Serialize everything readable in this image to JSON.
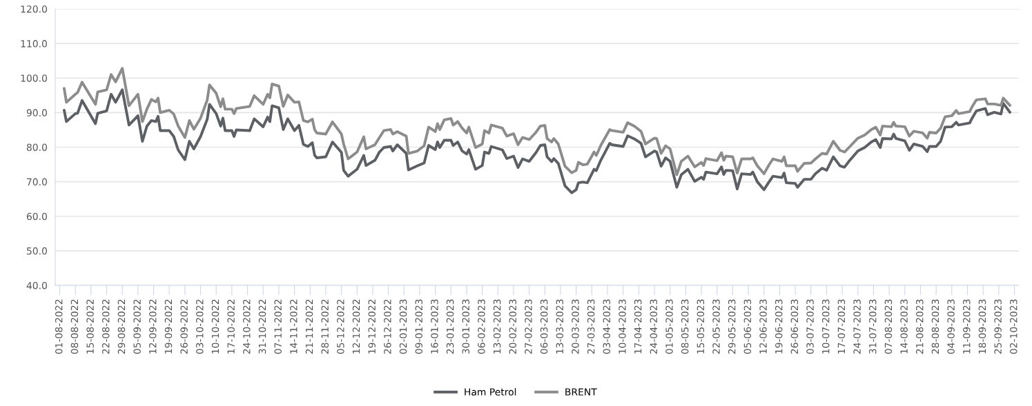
{
  "chart_data": {
    "type": "line",
    "x": [
      "2022-08-03",
      "2022-08-04",
      "2022-08-08",
      "2022-08-09",
      "2022-08-11",
      "2022-08-17",
      "2022-08-18",
      "2022-08-22",
      "2022-08-24",
      "2022-08-26",
      "2022-08-29",
      "2022-09-01",
      "2022-09-05",
      "2022-09-07",
      "2022-09-09",
      "2022-09-11",
      "2022-09-13",
      "2022-09-14",
      "2022-09-15",
      "2022-09-19",
      "2022-09-21",
      "2022-09-23",
      "2022-09-26",
      "2022-09-28",
      "2022-09-30",
      "2022-10-03",
      "2022-10-06",
      "2022-10-07",
      "2022-10-10",
      "2022-10-12",
      "2022-10-13",
      "2022-10-14",
      "2022-10-17",
      "2022-10-18",
      "2022-10-19",
      "2022-10-25",
      "2022-10-27",
      "2022-10-31",
      "2022-11-02",
      "2022-11-03",
      "2022-11-04",
      "2022-11-07",
      "2022-11-09",
      "2022-11-11",
      "2022-11-14",
      "2022-11-16",
      "2022-11-18",
      "2022-11-20",
      "2022-11-22",
      "2022-11-23",
      "2022-11-24",
      "2022-11-28",
      "2022-12-01",
      "2022-12-05",
      "2022-12-06",
      "2022-12-08",
      "2022-12-12",
      "2022-12-15",
      "2022-12-16",
      "2022-12-20",
      "2022-12-22",
      "2022-12-24",
      "2022-12-27",
      "2022-12-28",
      "2022-12-30",
      "2023-01-03",
      "2023-01-04",
      "2023-01-08",
      "2023-01-11",
      "2023-01-13",
      "2023-01-16",
      "2023-01-17",
      "2023-01-18",
      "2023-01-20",
      "2023-01-23",
      "2023-01-24",
      "2023-01-26",
      "2023-01-28",
      "2023-01-30",
      "2023-01-31",
      "2023-02-03",
      "2023-02-06",
      "2023-02-07",
      "2023-02-09",
      "2023-02-10",
      "2023-02-15",
      "2023-02-17",
      "2023-02-20",
      "2023-02-22",
      "2023-02-24",
      "2023-02-27",
      "2023-03-02",
      "2023-03-04",
      "2023-03-06",
      "2023-03-07",
      "2023-03-09",
      "2023-03-10",
      "2023-03-12",
      "2023-03-15",
      "2023-03-18",
      "2023-03-20",
      "2023-03-21",
      "2023-03-23",
      "2023-03-25",
      "2023-03-28",
      "2023-03-29",
      "2023-03-31",
      "2023-04-04",
      "2023-04-05",
      "2023-04-10",
      "2023-04-12",
      "2023-04-15",
      "2023-04-18",
      "2023-04-20",
      "2023-04-24",
      "2023-04-25",
      "2023-04-27",
      "2023-04-29",
      "2023-05-01",
      "2023-05-04",
      "2023-05-06",
      "2023-05-09",
      "2023-05-12",
      "2023-05-15",
      "2023-05-16",
      "2023-05-17",
      "2023-05-22",
      "2023-05-24",
      "2023-05-25",
      "2023-05-26",
      "2023-05-29",
      "2023-05-31",
      "2023-06-02",
      "2023-06-06",
      "2023-06-07",
      "2023-06-09",
      "2023-06-12",
      "2023-06-14",
      "2023-06-16",
      "2023-06-20",
      "2023-06-21",
      "2023-06-22",
      "2023-06-26",
      "2023-06-27",
      "2023-06-30",
      "2023-07-03",
      "2023-07-05",
      "2023-07-08",
      "2023-07-10",
      "2023-07-13",
      "2023-07-16",
      "2023-07-18",
      "2023-07-20",
      "2023-07-24",
      "2023-07-27",
      "2023-07-30",
      "2023-08-01",
      "2023-08-03",
      "2023-08-04",
      "2023-08-08",
      "2023-08-09",
      "2023-08-10",
      "2023-08-14",
      "2023-08-16",
      "2023-08-18",
      "2023-08-22",
      "2023-08-24",
      "2023-08-25",
      "2023-08-28",
      "2023-08-30",
      "2023-09-01",
      "2023-09-04",
      "2023-09-06",
      "2023-09-07",
      "2023-09-12",
      "2023-09-13",
      "2023-09-15",
      "2023-09-19",
      "2023-09-20",
      "2023-09-23",
      "2023-09-26",
      "2023-09-27",
      "2023-09-30"
    ],
    "series": [
      {
        "name": "Ham Petrol",
        "color": "#5c5f63",
        "values": [
          90.7,
          87.4,
          89.7,
          89.8,
          93.5,
          86.8,
          89.8,
          90.5,
          95.3,
          93.0,
          96.6,
          86.4,
          89.1,
          81.7,
          86.1,
          87.7,
          87.4,
          88.9,
          84.8,
          84.8,
          83.1,
          79.2,
          76.4,
          81.7,
          79.5,
          83.1,
          88.1,
          92.4,
          89.7,
          86.1,
          88.4,
          84.8,
          84.8,
          83.1,
          85.0,
          84.8,
          88.2,
          85.9,
          88.7,
          87.4,
          92.0,
          91.4,
          85.1,
          88.2,
          84.8,
          86.3,
          80.8,
          80.2,
          81.3,
          77.7,
          76.9,
          77.2,
          81.5,
          78.5,
          73.3,
          71.6,
          73.6,
          77.6,
          74.7,
          76.2,
          78.6,
          79.9,
          80.2,
          78.9,
          80.7,
          78.2,
          73.4,
          74.6,
          75.4,
          80.5,
          79.3,
          81.5,
          79.9,
          82.0,
          82.0,
          80.5,
          81.5,
          78.9,
          78.0,
          79.3,
          73.6,
          74.7,
          78.6,
          78.2,
          80.2,
          79.2,
          76.7,
          77.4,
          74.1,
          76.6,
          75.9,
          78.4,
          80.5,
          80.7,
          77.2,
          75.8,
          76.7,
          75.3,
          68.8,
          66.8,
          67.7,
          69.7,
          69.9,
          69.7,
          73.6,
          73.2,
          76.2,
          81.1,
          80.7,
          80.2,
          83.3,
          82.4,
          81.1,
          77.2,
          78.9,
          78.6,
          74.5,
          76.9,
          75.9,
          68.4,
          72.0,
          73.6,
          70.1,
          71.3,
          70.7,
          72.8,
          72.3,
          74.3,
          72.1,
          73.3,
          73.2,
          67.9,
          72.3,
          72.1,
          72.8,
          70.0,
          67.7,
          69.7,
          71.6,
          71.2,
          72.5,
          69.7,
          69.5,
          68.4,
          70.7,
          70.7,
          72.3,
          73.9,
          73.3,
          77.2,
          74.6,
          74.2,
          75.9,
          78.9,
          79.9,
          81.5,
          82.2,
          79.9,
          82.5,
          82.4,
          83.8,
          82.5,
          81.8,
          79.1,
          80.9,
          80.2,
          78.7,
          80.2,
          80.2,
          81.7,
          85.8,
          85.9,
          87.2,
          86.4,
          87.0,
          88.3,
          90.5,
          91.2,
          89.4,
          90.1,
          89.6,
          92.7,
          90.1
        ]
      },
      {
        "name": "BRENT",
        "color": "#8c8c8c",
        "values": [
          97.0,
          93.0,
          95.3,
          95.8,
          98.8,
          92.4,
          96.0,
          96.6,
          101.0,
          98.9,
          102.8,
          92.0,
          95.3,
          87.4,
          91.0,
          93.8,
          93.1,
          94.2,
          90.0,
          90.7,
          89.6,
          86.1,
          82.8,
          87.7,
          85.2,
          88.4,
          93.7,
          98.0,
          95.6,
          91.7,
          94.0,
          91.0,
          91.0,
          89.7,
          91.2,
          91.8,
          94.9,
          92.4,
          95.3,
          94.3,
          98.3,
          97.7,
          91.8,
          95.1,
          93.0,
          93.1,
          87.7,
          87.3,
          88.1,
          85.1,
          84.1,
          83.8,
          87.3,
          83.8,
          80.9,
          76.6,
          78.6,
          83.0,
          79.5,
          80.7,
          82.8,
          84.8,
          85.1,
          83.8,
          84.5,
          83.2,
          78.2,
          78.9,
          80.4,
          85.8,
          84.5,
          86.8,
          85.1,
          87.9,
          88.3,
          86.4,
          87.4,
          85.5,
          84.1,
          85.8,
          79.9,
          80.9,
          84.8,
          84.1,
          86.4,
          85.5,
          83.2,
          83.9,
          80.7,
          82.8,
          82.2,
          84.3,
          86.1,
          86.3,
          82.5,
          81.5,
          82.5,
          80.9,
          74.5,
          72.6,
          73.3,
          75.6,
          74.9,
          75.1,
          78.6,
          77.6,
          80.5,
          85.1,
          84.8,
          84.3,
          87.1,
          86.1,
          84.6,
          80.9,
          82.6,
          82.5,
          78.2,
          80.4,
          79.5,
          72.0,
          75.9,
          77.4,
          74.3,
          75.6,
          74.7,
          76.7,
          76.1,
          78.4,
          76.2,
          77.4,
          77.2,
          72.5,
          76.6,
          76.6,
          76.9,
          74.6,
          72.3,
          74.6,
          76.6,
          75.9,
          77.2,
          74.6,
          74.6,
          73.0,
          75.3,
          75.4,
          76.6,
          78.2,
          78.0,
          81.7,
          79.1,
          78.6,
          79.9,
          82.6,
          83.5,
          85.1,
          85.8,
          83.5,
          86.1,
          85.9,
          87.2,
          86.1,
          85.9,
          83.2,
          84.6,
          84.1,
          82.6,
          84.3,
          84.1,
          85.5,
          88.8,
          89.1,
          90.6,
          89.7,
          90.3,
          91.6,
          93.7,
          94.0,
          92.5,
          92.5,
          92.1,
          94.2,
          92.1
        ]
      }
    ],
    "xlim": [
      "2022-07-30",
      "2023-10-04"
    ],
    "xticks": [
      {
        "value": "2022-08-01",
        "label": "01-08-2022"
      },
      {
        "value": "2022-08-08",
        "label": "08-08-2022"
      },
      {
        "value": "2022-08-15",
        "label": "15-08-2022"
      },
      {
        "value": "2022-08-22",
        "label": "22-08-2022"
      },
      {
        "value": "2022-08-29",
        "label": "29-08-2022"
      },
      {
        "value": "2022-09-05",
        "label": "05-09-2022"
      },
      {
        "value": "2022-09-12",
        "label": "12-09-2022"
      },
      {
        "value": "2022-09-19",
        "label": "19-09-2022"
      },
      {
        "value": "2022-09-26",
        "label": "26-09-2022"
      },
      {
        "value": "2022-10-03",
        "label": "03-10-2022"
      },
      {
        "value": "2022-10-10",
        "label": "10-10-2022"
      },
      {
        "value": "2022-10-17",
        "label": "17-10-2022"
      },
      {
        "value": "2022-10-24",
        "label": "24-10-2022"
      },
      {
        "value": "2022-10-31",
        "label": "31-10-2022"
      },
      {
        "value": "2022-11-07",
        "label": "07-11-2022"
      },
      {
        "value": "2022-11-14",
        "label": "14-11-2022"
      },
      {
        "value": "2022-11-21",
        "label": "21-11-2022"
      },
      {
        "value": "2022-11-28",
        "label": "28-11-2022"
      },
      {
        "value": "2022-12-05",
        "label": "05-12-2022"
      },
      {
        "value": "2022-12-12",
        "label": "12-12-2022"
      },
      {
        "value": "2022-12-19",
        "label": "19-12-2022"
      },
      {
        "value": "2022-12-26",
        "label": "26-12-2022"
      },
      {
        "value": "2023-01-02",
        "label": "02-01-2023"
      },
      {
        "value": "2023-01-09",
        "label": "09-01-2023"
      },
      {
        "value": "2023-01-16",
        "label": "16-01-2023"
      },
      {
        "value": "2023-01-23",
        "label": "23-01-2023"
      },
      {
        "value": "2023-01-30",
        "label": "30-01-2023"
      },
      {
        "value": "2023-02-06",
        "label": "06-02-2023"
      },
      {
        "value": "2023-02-13",
        "label": "13-02-2023"
      },
      {
        "value": "2023-02-20",
        "label": "20-02-2023"
      },
      {
        "value": "2023-02-27",
        "label": "27-02-2023"
      },
      {
        "value": "2023-03-06",
        "label": "06-03-2023"
      },
      {
        "value": "2023-03-13",
        "label": "13-03-2023"
      },
      {
        "value": "2023-03-20",
        "label": "20-03-2023"
      },
      {
        "value": "2023-03-27",
        "label": "27-03-2023"
      },
      {
        "value": "2023-04-03",
        "label": "03-04-2023"
      },
      {
        "value": "2023-04-10",
        "label": "10-04-2023"
      },
      {
        "value": "2023-04-17",
        "label": "17-04-2023"
      },
      {
        "value": "2023-04-24",
        "label": "24-04-2023"
      },
      {
        "value": "2023-05-01",
        "label": "01-05-2023"
      },
      {
        "value": "2023-05-08",
        "label": "08-05-2023"
      },
      {
        "value": "2023-05-15",
        "label": "15-05-2023"
      },
      {
        "value": "2023-05-22",
        "label": "22-05-2023"
      },
      {
        "value": "2023-05-29",
        "label": "29-05-2023"
      },
      {
        "value": "2023-06-05",
        "label": "05-06-2023"
      },
      {
        "value": "2023-06-12",
        "label": "12-06-2023"
      },
      {
        "value": "2023-06-19",
        "label": "19-06-2023"
      },
      {
        "value": "2023-06-26",
        "label": "26-06-2023"
      },
      {
        "value": "2023-07-03",
        "label": "03-07-2023"
      },
      {
        "value": "2023-07-10",
        "label": "10-07-2023"
      },
      {
        "value": "2023-07-17",
        "label": "17-07-2023"
      },
      {
        "value": "2023-07-24",
        "label": "24-07-2023"
      },
      {
        "value": "2023-07-31",
        "label": "31-07-2023"
      },
      {
        "value": "2023-08-07",
        "label": "07-08-2023"
      },
      {
        "value": "2023-08-14",
        "label": "14-08-2023"
      },
      {
        "value": "2023-08-21",
        "label": "21-08-2023"
      },
      {
        "value": "2023-08-28",
        "label": "28-08-2023"
      },
      {
        "value": "2023-09-04",
        "label": "04-09-2023"
      },
      {
        "value": "2023-09-11",
        "label": "11-09-2023"
      },
      {
        "value": "2023-09-18",
        "label": "18-09-2023"
      },
      {
        "value": "2023-09-25",
        "label": "25-09-2023"
      },
      {
        "value": "2023-10-02",
        "label": "02-10-2023"
      }
    ],
    "ylim": [
      40,
      120
    ],
    "yticks": [
      {
        "value": 40,
        "label": "40.0"
      },
      {
        "value": 50,
        "label": "50.0"
      },
      {
        "value": 60,
        "label": "60.0"
      },
      {
        "value": 70,
        "label": "70.0"
      },
      {
        "value": 80,
        "label": "80.0"
      },
      {
        "value": 90,
        "label": "90.0"
      },
      {
        "value": 100,
        "label": "100.0"
      },
      {
        "value": 110,
        "label": "110.0"
      },
      {
        "value": 120,
        "label": "120.0"
      }
    ],
    "grid": "y",
    "legend": "bottom",
    "line_style": "solid"
  }
}
